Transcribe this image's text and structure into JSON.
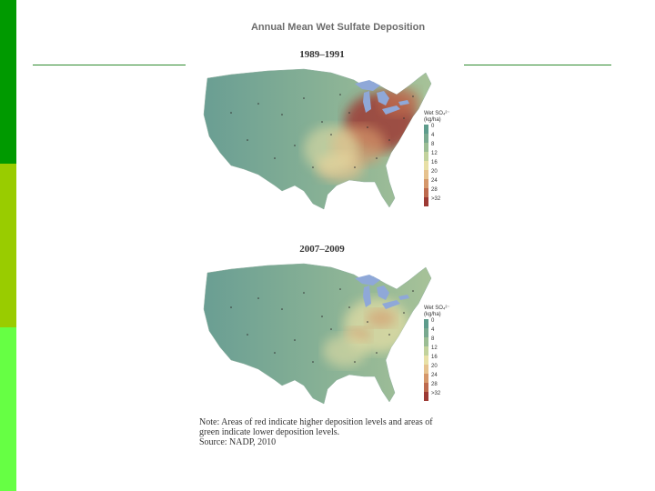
{
  "slide": {
    "title": "Annual Mean Wet Sulfate Deposition",
    "accent_colors": [
      "#009a00",
      "#99cc00",
      "#66ff44"
    ],
    "rule_color": "#2e8b2e"
  },
  "maps": [
    {
      "period": "1989–1991",
      "hotspot": "heavy"
    },
    {
      "period": "2007–2009",
      "hotspot": "light"
    }
  ],
  "legend": {
    "title_line1": "Wet SO₄²⁻",
    "title_line2": "(kg/ha)",
    "ticks": [
      "0",
      "4",
      "8",
      "12",
      "16",
      "20",
      "24",
      "28",
      ">32"
    ],
    "colors": [
      "#5e9c8c",
      "#79a98f",
      "#9bbd94",
      "#c2d29c",
      "#e8e0a6",
      "#e6c28e",
      "#d5976a",
      "#bd6a4e",
      "#9d3a34"
    ]
  },
  "note": {
    "line1": "Note: Areas of red indicate higher deposition levels and areas of",
    "line2": "green indicate lower deposition levels.",
    "source": "Source: NADP, 2010"
  }
}
